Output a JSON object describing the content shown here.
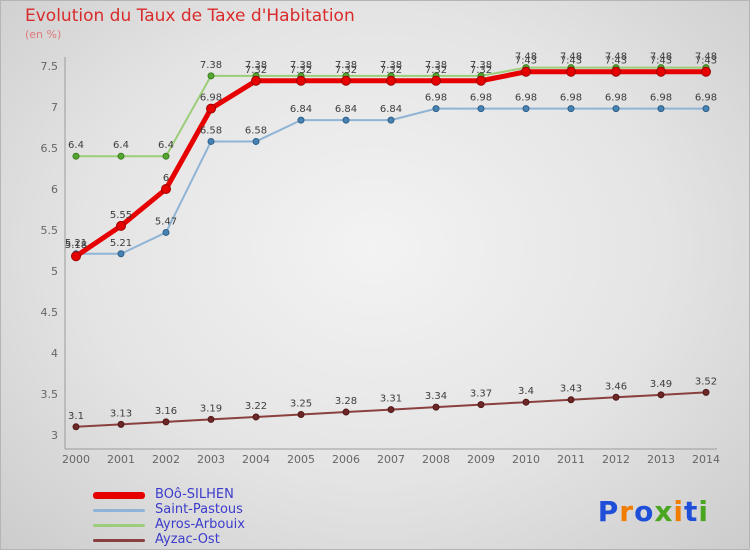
{
  "header": {
    "title": "Evolution du Taux de Taxe d'Habitation",
    "subtitle": "(en %)"
  },
  "chart_data": {
    "type": "line",
    "title": "Evolution du Taux de Taxe d'Habitation",
    "subtitle": "(en %)",
    "x": [
      2000,
      2001,
      2002,
      2003,
      2004,
      2005,
      2006,
      2007,
      2008,
      2009,
      2010,
      2011,
      2012,
      2013,
      2014
    ],
    "ylim": [
      3,
      7.5
    ],
    "yticks": [
      3,
      3.5,
      4,
      4.5,
      5,
      5.5,
      6,
      6.5,
      7,
      7.5
    ],
    "grid": false,
    "legend_position": "bottom-left",
    "series": [
      {
        "name": "BOô-SILHEN",
        "color": "#e60000",
        "marker": "#e60000",
        "edge": "#9e0000",
        "width": 5,
        "values": [
          5.18,
          5.55,
          6,
          6.98,
          7.32,
          7.32,
          7.32,
          7.32,
          7.32,
          7.32,
          7.43,
          7.43,
          7.43,
          7.43,
          7.43
        ]
      },
      {
        "name": "Saint-Pastous",
        "color": "#8fb4d6",
        "marker": "#4682b4",
        "edge": "#2f5f86",
        "width": 2,
        "values": [
          5.21,
          5.21,
          5.47,
          6.58,
          6.58,
          6.84,
          6.84,
          6.84,
          6.98,
          6.98,
          6.98,
          6.98,
          6.98,
          6.98,
          6.98
        ]
      },
      {
        "name": "Ayros-Arbouix",
        "color": "#9ccd78",
        "marker": "#55a630",
        "edge": "#3c7d1f",
        "width": 2,
        "values": [
          6.4,
          6.4,
          6.4,
          7.38,
          7.38,
          7.38,
          7.38,
          7.38,
          7.38,
          7.38,
          7.48,
          7.48,
          7.48,
          7.48,
          7.48
        ]
      },
      {
        "name": "Ayzac-Ost",
        "color": "#8b4040",
        "marker": "#6e2727",
        "edge": "#4f1818",
        "width": 2,
        "values": [
          3.1,
          3.13,
          3.16,
          3.19,
          3.22,
          3.25,
          3.28,
          3.31,
          3.34,
          3.37,
          3.4,
          3.43,
          3.46,
          3.49,
          3.52
        ]
      }
    ]
  },
  "legend": {
    "text_color": "#3c3ccc"
  },
  "logo": {
    "name": "Proxiti",
    "letters": [
      {
        "ch": "P",
        "color": "#1f4fd8"
      },
      {
        "ch": "r",
        "color": "#f07d00"
      },
      {
        "ch": "o",
        "color": "#1f4fd8"
      },
      {
        "ch": "x",
        "color": "#4aa520"
      },
      {
        "ch": "i",
        "color": "#f07d00"
      },
      {
        "ch": "t",
        "color": "#1f4fd8"
      },
      {
        "ch": "i",
        "color": "#4aa520"
      }
    ]
  }
}
